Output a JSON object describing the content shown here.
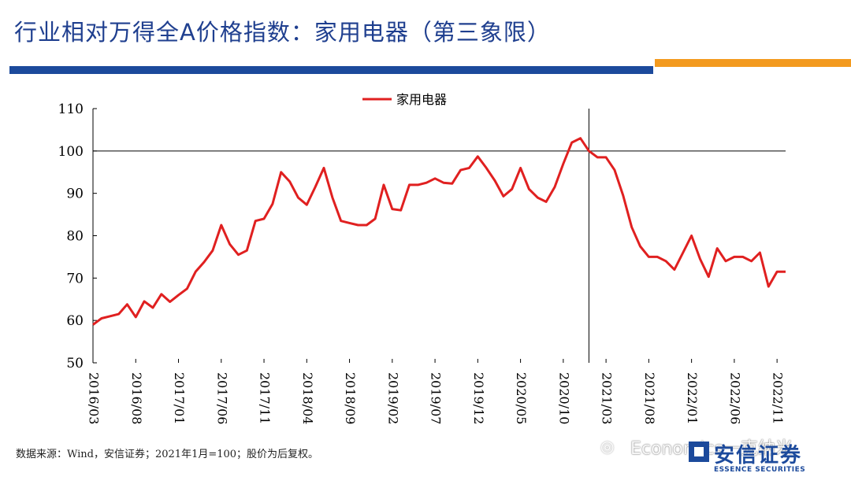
{
  "header": {
    "title": "行业相对万得全A价格指数：家用电器（第三象限）"
  },
  "footer": {
    "source": "数据来源：Wind，安信证券；2021年1月=100；股价为后复权。",
    "watermark": "Economics一克纳米",
    "logo_cn": "安信证券",
    "logo_en": "ESSENCE SECURITIES"
  },
  "colors": {
    "line": "#e02020",
    "title": "#1f3f8f",
    "bar_blue": "#1c4a9c",
    "bar_orange": "#f39a1e"
  },
  "chart_data": {
    "type": "line",
    "title": "",
    "xlabel": "",
    "ylabel": "",
    "ylim": [
      50,
      110
    ],
    "yticks": [
      50,
      60,
      70,
      80,
      90,
      100,
      110
    ],
    "grid": false,
    "legend": "top-center",
    "reference_line_y": 100,
    "reference_line_x": "2021/01",
    "x_tick_labels": [
      "2016/03",
      "2016/08",
      "2017/01",
      "2017/06",
      "2017/11",
      "2018/04",
      "2018/09",
      "2019/02",
      "2019/07",
      "2019/12",
      "2020/05",
      "2020/10",
      "2021/03",
      "2021/08",
      "2022/01",
      "2022/06",
      "2022/11"
    ],
    "series": [
      {
        "name": "家用电器",
        "x": [
          "2016/03",
          "2016/04",
          "2016/05",
          "2016/06",
          "2016/07",
          "2016/08",
          "2016/09",
          "2016/10",
          "2016/11",
          "2016/12",
          "2017/01",
          "2017/02",
          "2017/03",
          "2017/04",
          "2017/05",
          "2017/06",
          "2017/07",
          "2017/08",
          "2017/09",
          "2017/10",
          "2017/11",
          "2017/12",
          "2018/01",
          "2018/02",
          "2018/03",
          "2018/04",
          "2018/05",
          "2018/06",
          "2018/07",
          "2018/08",
          "2018/09",
          "2018/10",
          "2018/11",
          "2018/12",
          "2019/01",
          "2019/02",
          "2019/03",
          "2019/04",
          "2019/05",
          "2019/06",
          "2019/07",
          "2019/08",
          "2019/09",
          "2019/10",
          "2019/11",
          "2019/12",
          "2020/01",
          "2020/02",
          "2020/03",
          "2020/04",
          "2020/05",
          "2020/06",
          "2020/07",
          "2020/08",
          "2020/09",
          "2020/10",
          "2020/11",
          "2020/12",
          "2021/01",
          "2021/02",
          "2021/03",
          "2021/04",
          "2021/05",
          "2021/06",
          "2021/07",
          "2021/08",
          "2021/09",
          "2021/10",
          "2021/11",
          "2021/12",
          "2022/01",
          "2022/02",
          "2022/03",
          "2022/04",
          "2022/05",
          "2022/06",
          "2022/07",
          "2022/08",
          "2022/09",
          "2022/10",
          "2022/11",
          "2022/12"
        ],
        "values": [
          59.0,
          60.5,
          61.0,
          61.5,
          63.8,
          60.8,
          64.5,
          63.0,
          66.2,
          64.4,
          66.0,
          67.5,
          71.5,
          73.8,
          76.5,
          82.5,
          78.0,
          75.5,
          76.5,
          83.5,
          84.0,
          87.5,
          95.0,
          92.8,
          89.0,
          87.3,
          91.5,
          96.0,
          89.0,
          83.5,
          83.0,
          82.5,
          82.5,
          84.0,
          92.0,
          86.3,
          86.0,
          92.0,
          92.0,
          92.5,
          93.5,
          92.5,
          92.3,
          95.5,
          96.0,
          98.7,
          96.0,
          93.0,
          89.3,
          91.0,
          96.0,
          91.0,
          89.0,
          88.0,
          91.5,
          97.0,
          102.0,
          103.0,
          100.0,
          98.5,
          98.5,
          95.5,
          89.5,
          82.0,
          77.5,
          75.0,
          75.0,
          74.0,
          72.0,
          76.0,
          80.0,
          74.5,
          70.3,
          77.0,
          74.0,
          75.0,
          75.0,
          74.0,
          76.0,
          68.0,
          71.5,
          71.5
        ]
      }
    ]
  }
}
